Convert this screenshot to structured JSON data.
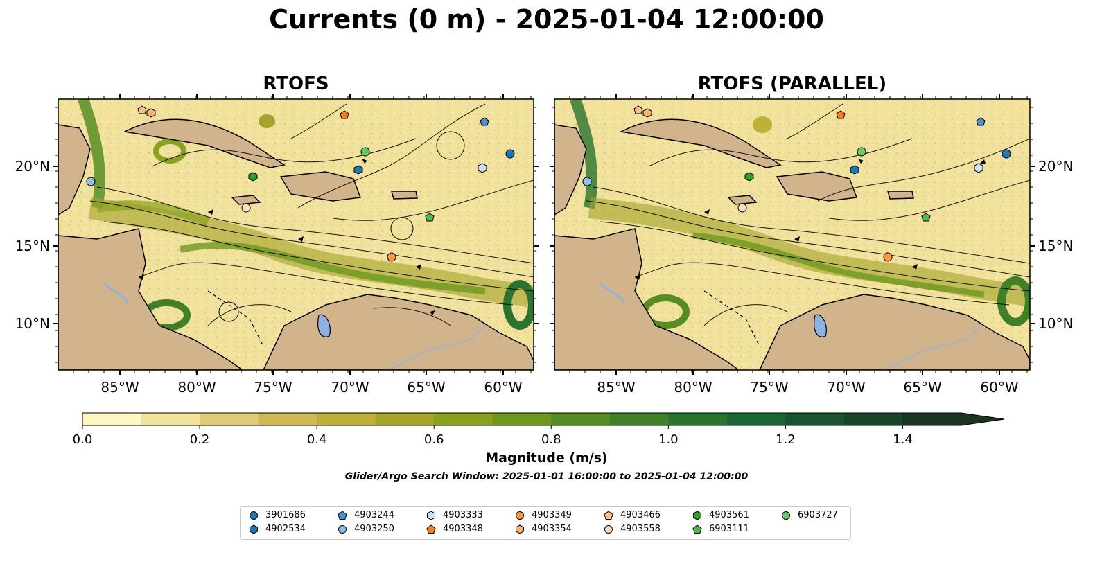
{
  "title": "Currents (0 m) - 2025-01-04 12:00:00",
  "panels": [
    {
      "title": "RTOFS"
    },
    {
      "title": "RTOFS (PARALLEL)"
    }
  ],
  "axes": {
    "lon_ticks": [
      "85°W",
      "80°W",
      "75°W",
      "70°W",
      "65°W",
      "60°W"
    ],
    "lat_ticks": [
      "20°N",
      "15°N",
      "10°N"
    ]
  },
  "colorbar": {
    "label": "Magnitude (m/s)",
    "ticks": [
      "0.0",
      "0.2",
      "0.4",
      "0.6",
      "0.8",
      "1.0",
      "1.2",
      "1.4"
    ],
    "range": [
      0.0,
      1.5
    ],
    "extend": "max",
    "colors": [
      "#fdf6c0",
      "#f0e19c",
      "#e0cc78",
      "#d0b855",
      "#bfb03a",
      "#a4a42a",
      "#8aa11f",
      "#6e9720",
      "#568c22",
      "#3f8028",
      "#2a7430",
      "#1a6632",
      "#175530",
      "#1a4428",
      "#1b3322"
    ]
  },
  "subtitle": "Glider/Argo Search Window: 2025-01-01 16:00:00 to 2025-01-04 12:00:00",
  "colors": {
    "land": "#d2b48c",
    "lake": "#8fb3e0"
  },
  "legend": [
    {
      "id": "3901686",
      "marker": "circle",
      "color": "#1f77b4"
    },
    {
      "id": "4902534",
      "marker": "hexagon",
      "color": "#1f77b4"
    },
    {
      "id": "4903244",
      "marker": "pentagon",
      "color": "#4a90d9"
    },
    {
      "id": "4903250",
      "marker": "circle",
      "color": "#8ec1ee"
    },
    {
      "id": "4903333",
      "marker": "hexagon",
      "color": "#c6e3fb"
    },
    {
      "id": "4903348",
      "marker": "pentagon",
      "color": "#ff7f0e"
    },
    {
      "id": "4903349",
      "marker": "circle",
      "color": "#ff9a3c"
    },
    {
      "id": "4903354",
      "marker": "hexagon",
      "color": "#ffb26b"
    },
    {
      "id": "4903466",
      "marker": "pentagon",
      "color": "#ffbf8e"
    },
    {
      "id": "4903558",
      "marker": "circle",
      "color": "#ffdcc0"
    },
    {
      "id": "4903561",
      "marker": "hexagon",
      "color": "#2ca02c"
    },
    {
      "id": "6903111",
      "marker": "pentagon",
      "color": "#4cbb4c"
    },
    {
      "id": "6903727",
      "marker": "circle",
      "color": "#66cc66"
    }
  ]
}
